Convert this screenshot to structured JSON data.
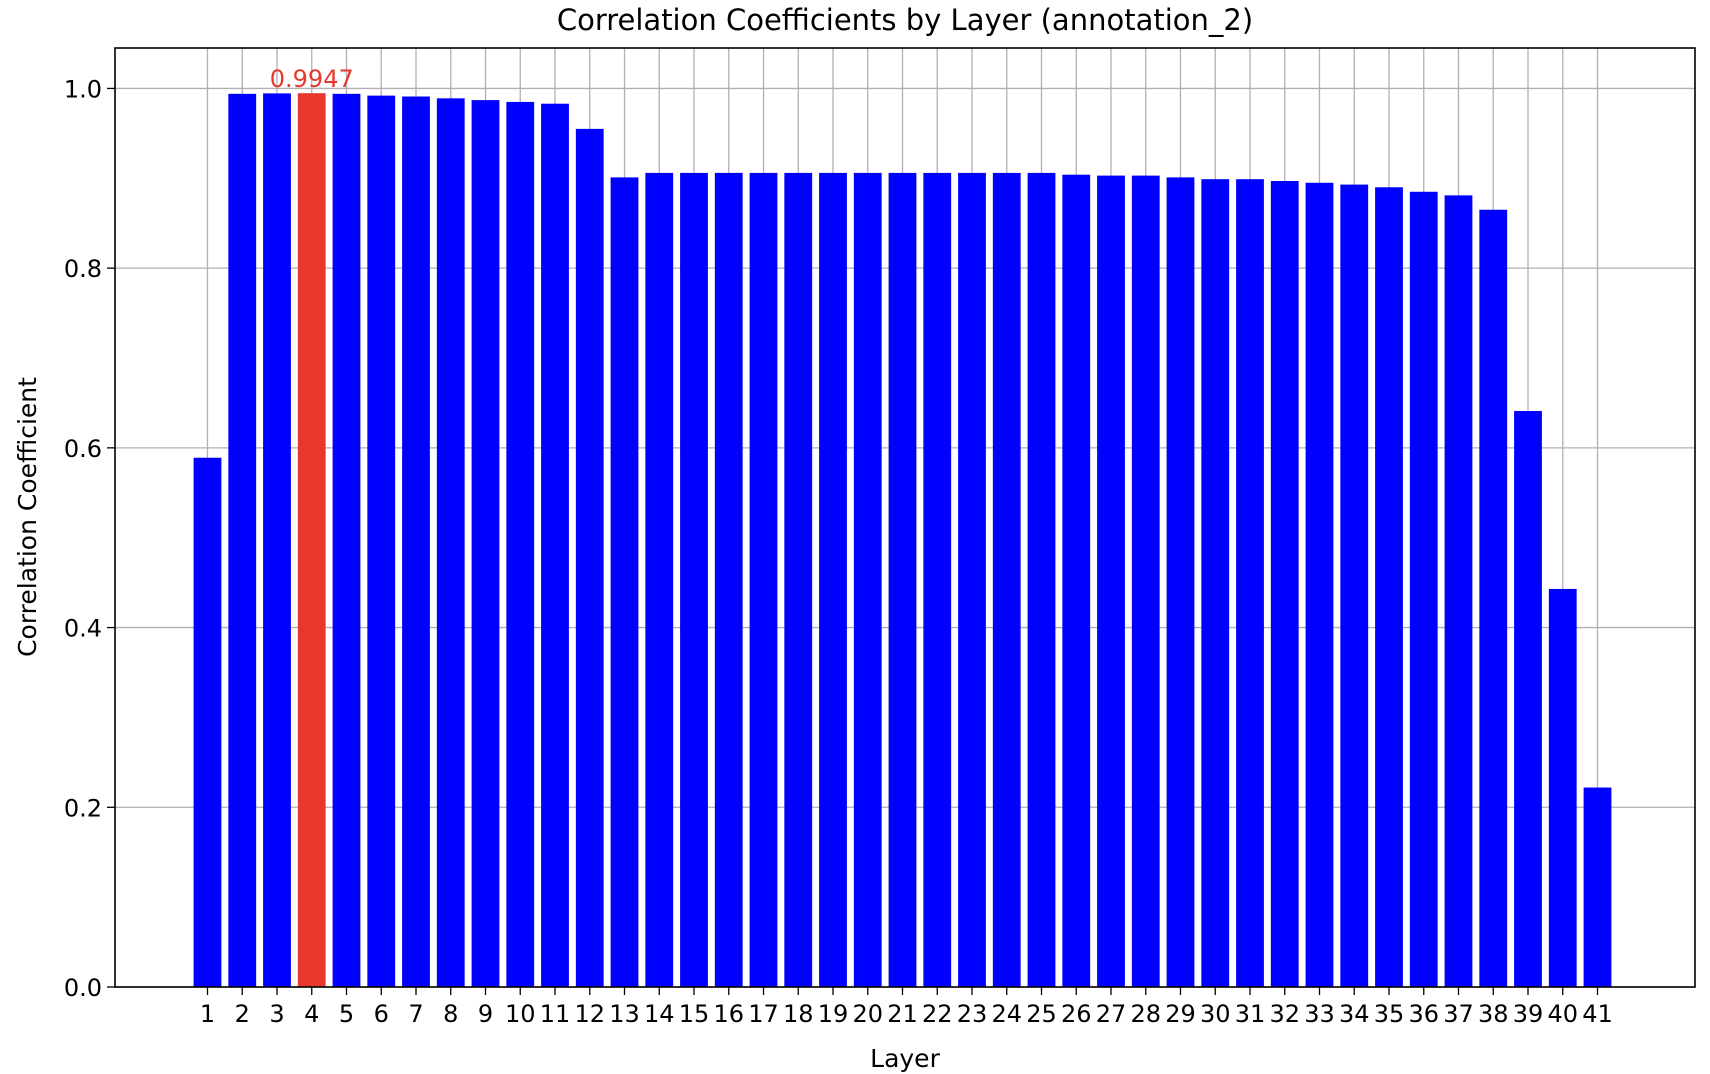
{
  "chart_data": {
    "type": "bar",
    "title": "Correlation Coefficients by Layer (annotation_2)",
    "xlabel": "Layer",
    "ylabel": "Correlation Coefficient",
    "ylim": [
      0,
      1.045
    ],
    "yticks": [
      "0.0",
      "0.2",
      "0.4",
      "0.6",
      "0.8",
      "1.0"
    ],
    "grid": true,
    "categories": [
      "1",
      "2",
      "3",
      "4",
      "5",
      "6",
      "7",
      "8",
      "9",
      "10",
      "11",
      "12",
      "13",
      "14",
      "15",
      "16",
      "17",
      "18",
      "19",
      "20",
      "21",
      "22",
      "23",
      "24",
      "25",
      "26",
      "27",
      "28",
      "29",
      "30",
      "31",
      "32",
      "33",
      "34",
      "35",
      "36",
      "37",
      "38",
      "39",
      "40",
      "41"
    ],
    "values": [
      0.589,
      0.994,
      0.9945,
      0.9947,
      0.994,
      0.992,
      0.991,
      0.989,
      0.987,
      0.985,
      0.983,
      0.955,
      0.901,
      0.906,
      0.906,
      0.906,
      0.906,
      0.906,
      0.906,
      0.906,
      0.906,
      0.906,
      0.906,
      0.906,
      0.906,
      0.904,
      0.903,
      0.903,
      0.901,
      0.899,
      0.899,
      0.897,
      0.895,
      0.893,
      0.89,
      0.885,
      0.881,
      0.865,
      0.641,
      0.443,
      0.222
    ],
    "highlight_index": 3,
    "highlight_label": "0.9947",
    "colors": {
      "bar": "#0000ff",
      "highlight": "#e8372c",
      "annotation": "#e8372c",
      "grid": "#b0b0b0"
    }
  }
}
